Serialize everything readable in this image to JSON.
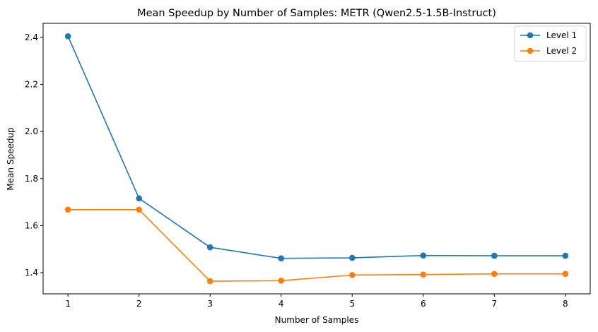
{
  "chart_data": {
    "type": "line",
    "title": "Mean Speedup by Number of Samples: METR (Qwen2.5-1.5B-Instruct)",
    "xlabel": "Number of Samples",
    "ylabel": "Mean Speedup",
    "x": [
      1,
      2,
      3,
      4,
      5,
      6,
      7,
      8
    ],
    "xlim": [
      0.65,
      8.35
    ],
    "ylim": [
      1.31,
      2.46
    ],
    "xticks": [
      "1",
      "2",
      "3",
      "4",
      "5",
      "6",
      "7",
      "8"
    ],
    "yticks": [
      "1.4",
      "1.6",
      "1.8",
      "2.0",
      "2.2",
      "2.4"
    ],
    "grid": false,
    "legend_position": "top-right",
    "series": [
      {
        "name": "Level 1",
        "color": "#1f77b4",
        "values": [
          2.405,
          1.716,
          1.508,
          1.461,
          1.463,
          1.473,
          1.472,
          1.472
        ]
      },
      {
        "name": "Level 2",
        "color": "#ff7f0e",
        "values": [
          1.668,
          1.668,
          1.364,
          1.366,
          1.39,
          1.392,
          1.395,
          1.395
        ]
      }
    ]
  }
}
